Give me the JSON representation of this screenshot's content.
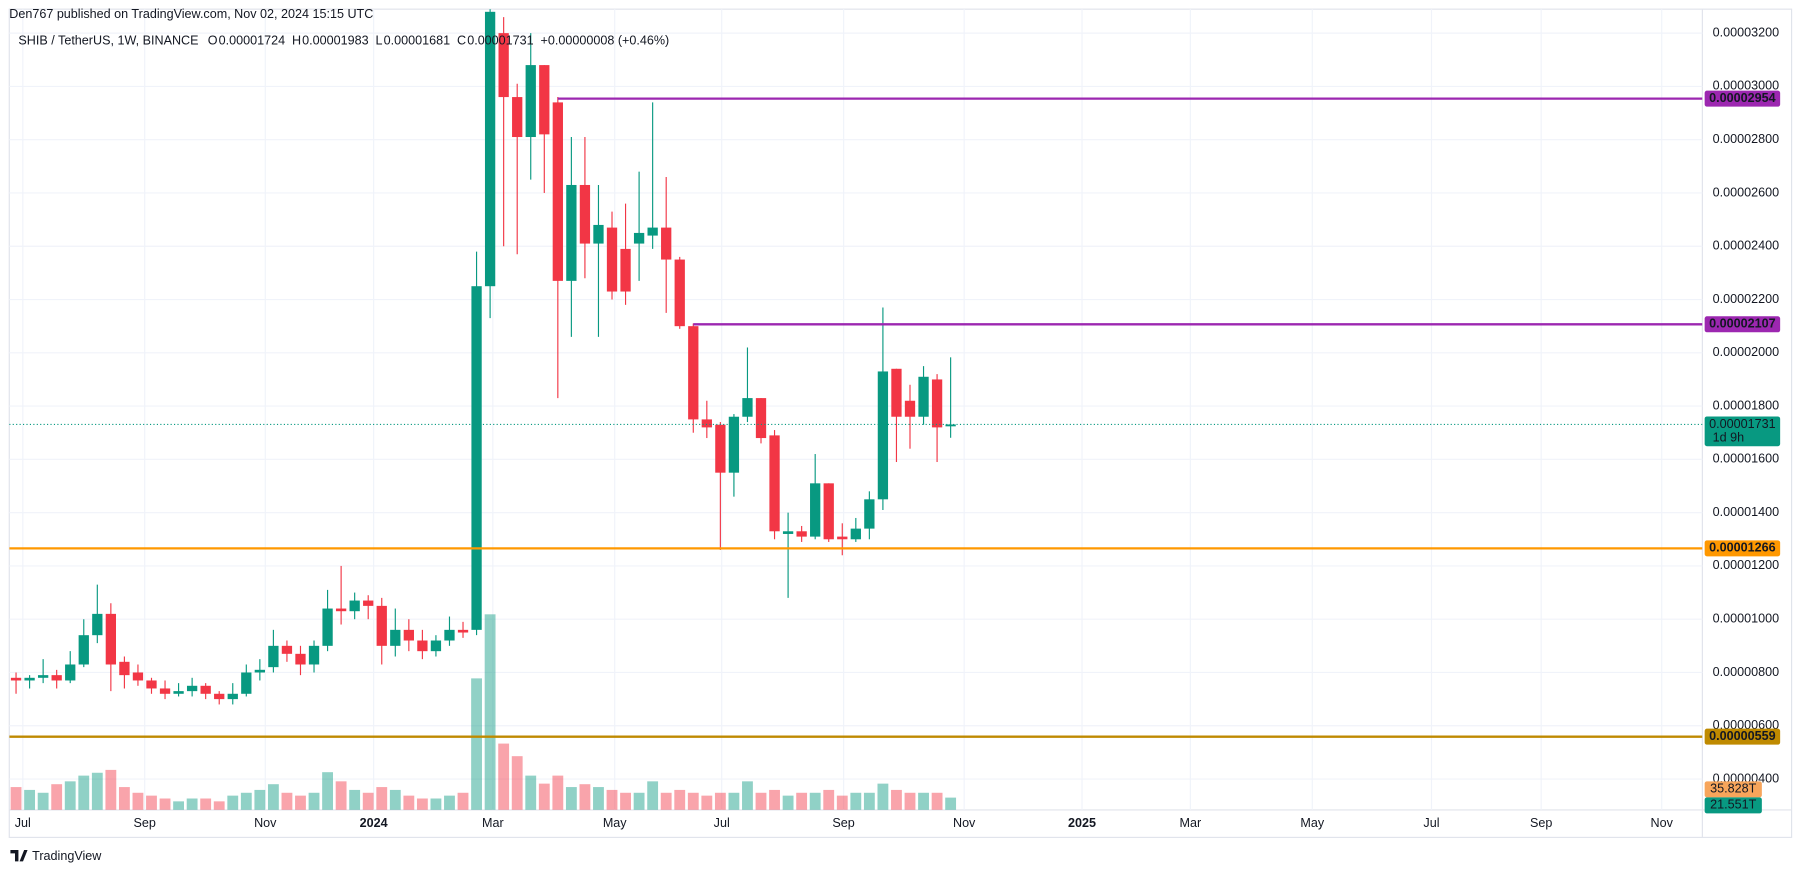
{
  "header": {
    "publisher": "Den767 published on TradingView.com, Nov 02, 2024 15:15 UTC"
  },
  "footer": {
    "brand": "TradingView"
  },
  "chart_data": {
    "type": "candlestick",
    "title": "SHIB / TetherUS, 1W, BINANCE",
    "ohlc_labels": [
      "O",
      "H",
      "L",
      "C"
    ],
    "ohlc_values": [
      1.724e-05,
      1.983e-05,
      1.681e-05,
      1.731e-05
    ],
    "change": {
      "value": 8e-08,
      "label": "+0.00000008 (+0.46%)"
    },
    "up_color": "#089981",
    "down_color": "#f23645",
    "open": [
      7.8e-06,
      7.7e-06,
      7.8e-06,
      7.9e-06,
      7.7e-06,
      8.3e-06,
      9.4e-06,
      1.02e-05,
      8.4e-06,
      8e-06,
      7.7e-06,
      7.4e-06,
      7.2e-06,
      7.3e-06,
      7.5e-06,
      7.2e-06,
      7e-06,
      7.2e-06,
      8e-06,
      8.2e-06,
      9e-06,
      8.7e-06,
      8.3e-06,
      9e-06,
      1.04e-05,
      1.03e-05,
      1.07e-05,
      1.05e-05,
      9e-06,
      9.6e-06,
      9.2e-06,
      8.8e-06,
      9.2e-06,
      9.6e-06,
      9.6e-06,
      2.25e-05,
      3.2e-05,
      2.96e-05,
      2.81e-05,
      3.08e-05,
      2.94e-05,
      2.27e-05,
      2.63e-05,
      2.41e-05,
      2.47e-05,
      2.39e-05,
      2.41e-05,
      2.44e-05,
      2.47e-05,
      2.35e-05,
      2.1e-05,
      1.75e-05,
      1.73e-05,
      1.55e-05,
      1.76e-05,
      1.83e-05,
      1.69e-05,
      1.32e-05,
      1.33e-05,
      1.31e-05,
      1.51e-05,
      1.31e-05,
      1.3e-05,
      1.34e-05,
      1.45e-05,
      1.94e-05,
      1.82e-05,
      1.76e-05,
      1.9e-05,
      1.724e-05
    ],
    "high": [
      8e-06,
      7.9e-06,
      8.5e-06,
      8.1e-06,
      8.8e-06,
      1e-05,
      1.13e-05,
      1.06e-05,
      8.6e-06,
      8.3e-06,
      7.8e-06,
      7.7e-06,
      7.6e-06,
      7.8e-06,
      7.6e-06,
      7.3e-06,
      7.6e-06,
      8.3e-06,
      8.5e-06,
      9.6e-06,
      9.2e-06,
      9e-06,
      9.2e-06,
      1.11e-05,
      1.2e-05,
      1.1e-05,
      1.09e-05,
      1.08e-05,
      1.04e-05,
      1e-05,
      9.6e-06,
      9.4e-06,
      1.01e-05,
      9.9e-06,
      2.38e-05,
      3.29e-05,
      3.26e-05,
      3.01e-05,
      3.2e-05,
      3.08e-05,
      2.96e-05,
      2.81e-05,
      2.81e-05,
      2.63e-05,
      2.53e-05,
      2.56e-05,
      2.68e-05,
      2.94e-05,
      2.66e-05,
      2.36e-05,
      2.11e-05,
      1.82e-05,
      1.74e-05,
      1.77e-05,
      2.02e-05,
      1.83e-05,
      1.71e-05,
      1.4e-05,
      1.35e-05,
      1.62e-05,
      1.51e-05,
      1.36e-05,
      1.38e-05,
      1.48e-05,
      2.17e-05,
      1.94e-05,
      1.88e-05,
      1.95e-05,
      1.92e-05,
      1.983e-05
    ],
    "low": [
      7.2e-06,
      7.4e-06,
      7.6e-06,
      7.4e-06,
      7.6e-06,
      8.2e-06,
      9.1e-06,
      7.3e-06,
      7.4e-06,
      7.5e-06,
      7.2e-06,
      7e-06,
      7.1e-06,
      7.1e-06,
      7e-06,
      6.8e-06,
      6.8e-06,
      7.1e-06,
      7.7e-06,
      8e-06,
      8.4e-06,
      7.9e-06,
      8e-06,
      8.8e-06,
      9.8e-06,
      1e-05,
      1e-05,
      8.3e-06,
      8.6e-06,
      8.8e-06,
      8.5e-06,
      8.6e-06,
      9e-06,
      9.3e-06,
      9.4e-06,
      2.13e-05,
      2.4e-05,
      2.37e-05,
      2.65e-05,
      2.6e-05,
      1.83e-05,
      2.06e-05,
      2.28e-05,
      2.06e-05,
      2.2e-05,
      2.18e-05,
      2.27e-05,
      2.39e-05,
      2.15e-05,
      2.09e-05,
      1.7e-05,
      1.68e-05,
      1.26e-05,
      1.46e-05,
      1.74e-05,
      1.66e-05,
      1.3e-05,
      1.08e-05,
      1.29e-05,
      1.3e-05,
      1.29e-05,
      1.24e-05,
      1.29e-05,
      1.3e-05,
      1.41e-05,
      1.59e-05,
      1.64e-05,
      1.73e-05,
      1.59e-05,
      1.681e-05
    ],
    "close": [
      7.7e-06,
      7.8e-06,
      7.9e-06,
      7.7e-06,
      8.3e-06,
      9.4e-06,
      1.02e-05,
      8.3e-06,
      7.9e-06,
      7.7e-06,
      7.4e-06,
      7.2e-06,
      7.3e-06,
      7.5e-06,
      7.2e-06,
      7e-06,
      7.2e-06,
      8e-06,
      8.1e-06,
      9e-06,
      8.7e-06,
      8.3e-06,
      9e-06,
      1.04e-05,
      1.03e-05,
      1.07e-05,
      1.05e-05,
      9e-06,
      9.6e-06,
      9.2e-06,
      8.8e-06,
      9.2e-06,
      9.6e-06,
      9.5e-06,
      2.25e-05,
      3.28e-05,
      2.96e-05,
      2.81e-05,
      3.08e-05,
      2.82e-05,
      2.27e-05,
      2.63e-05,
      2.41e-05,
      2.48e-05,
      2.23e-05,
      2.23e-05,
      2.45e-05,
      2.47e-05,
      2.35e-05,
      2.1e-05,
      1.75e-05,
      1.72e-05,
      1.55e-05,
      1.76e-05,
      1.83e-05,
      1.68e-05,
      1.33e-05,
      1.33e-05,
      1.31e-05,
      1.51e-05,
      1.3e-05,
      1.3e-05,
      1.34e-05,
      1.45e-05,
      1.93e-05,
      1.76e-05,
      1.76e-05,
      1.91e-05,
      1.72e-05,
      1.731e-05
    ],
    "volume": [
      40,
      35,
      30,
      45,
      50,
      60,
      65,
      70,
      40,
      30,
      25,
      20,
      15,
      20,
      20,
      15,
      25,
      30,
      35,
      45,
      30,
      25,
      30,
      66,
      50,
      35,
      30,
      40,
      35,
      25,
      20,
      20,
      25,
      30,
      230,
      342,
      116,
      94,
      60,
      46,
      60,
      40,
      45,
      40,
      35,
      30,
      30,
      50,
      30,
      35,
      30,
      25,
      30,
      30,
      50,
      30,
      35,
      25,
      30,
      30,
      35,
      25,
      30,
      30,
      46,
      35,
      30,
      30,
      30,
      21.551
    ],
    "vlim": [
      0,
      1400
    ],
    "xlim": [
      -0.5,
      124.5
    ],
    "xticks": [
      {
        "value": 0.5,
        "label": "Jul"
      },
      {
        "value": 9.5,
        "label": "Sep"
      },
      {
        "value": 18.4,
        "label": "Nov"
      },
      {
        "value": 26.4,
        "label": "2024"
      },
      {
        "value": 35.2,
        "label": "Mar"
      },
      {
        "value": 44.2,
        "label": "May"
      },
      {
        "value": 52.1,
        "label": "Jul"
      },
      {
        "value": 61.1,
        "label": "Sep"
      },
      {
        "value": 70.0,
        "label": "Nov"
      },
      {
        "value": 78.7,
        "label": "2025"
      },
      {
        "value": 86.7,
        "label": "Mar"
      },
      {
        "value": 95.7,
        "label": "May"
      },
      {
        "value": 104.5,
        "label": "Jul"
      },
      {
        "value": 112.6,
        "label": "Sep"
      },
      {
        "value": 121.5,
        "label": "Nov"
      }
    ],
    "ylim": [
      2.84e-06,
      3.29e-05
    ],
    "yticks": [
      {
        "value": 4e-06,
        "label": "0.00000400"
      },
      {
        "value": 6e-06,
        "label": "0.00000600"
      },
      {
        "value": 8e-06,
        "label": "0.00000800"
      },
      {
        "value": 1e-05,
        "label": "0.00001000"
      },
      {
        "value": 1.2e-05,
        "label": "0.00001200"
      },
      {
        "value": 1.4e-05,
        "label": "0.00001400"
      },
      {
        "value": 1.6e-05,
        "label": "0.00001600"
      },
      {
        "value": 1.8e-05,
        "label": "0.00001800"
      },
      {
        "value": 2e-05,
        "label": "0.00002000"
      },
      {
        "value": 2.2e-05,
        "label": "0.00002200"
      },
      {
        "value": 2.4e-05,
        "label": "0.00002400"
      },
      {
        "value": 2.6e-05,
        "label": "0.00002600"
      },
      {
        "value": 2.8e-05,
        "label": "0.00002800"
      },
      {
        "value": 3e-05,
        "label": "0.00003000"
      },
      {
        "value": 3.2e-05,
        "label": "0.00003200"
      }
    ],
    "grid": true,
    "levels": [
      {
        "value": 2.954e-05,
        "label": "0.00002954",
        "color": "#9c27b0",
        "from_x": 40
      },
      {
        "value": 2.107e-05,
        "label": "0.00002107",
        "color": "#9c27b0",
        "from_x": 50
      },
      {
        "value": 1.266e-05,
        "label": "0.00001266",
        "color": "#ff9800",
        "from_x": -0.5
      },
      {
        "value": 5.59e-06,
        "label": "0.00000559",
        "color": "#bf8a00",
        "from_x": -0.5
      }
    ],
    "last_price": {
      "value": 1.731e-05,
      "label": "0.00001731",
      "countdown": "1d 9h"
    },
    "volume_badges": [
      {
        "value": 35.828,
        "label": "35.828T",
        "color": "#f7a55b"
      },
      {
        "value": 21.551,
        "label": "21.551T",
        "color": "#089981"
      }
    ]
  }
}
